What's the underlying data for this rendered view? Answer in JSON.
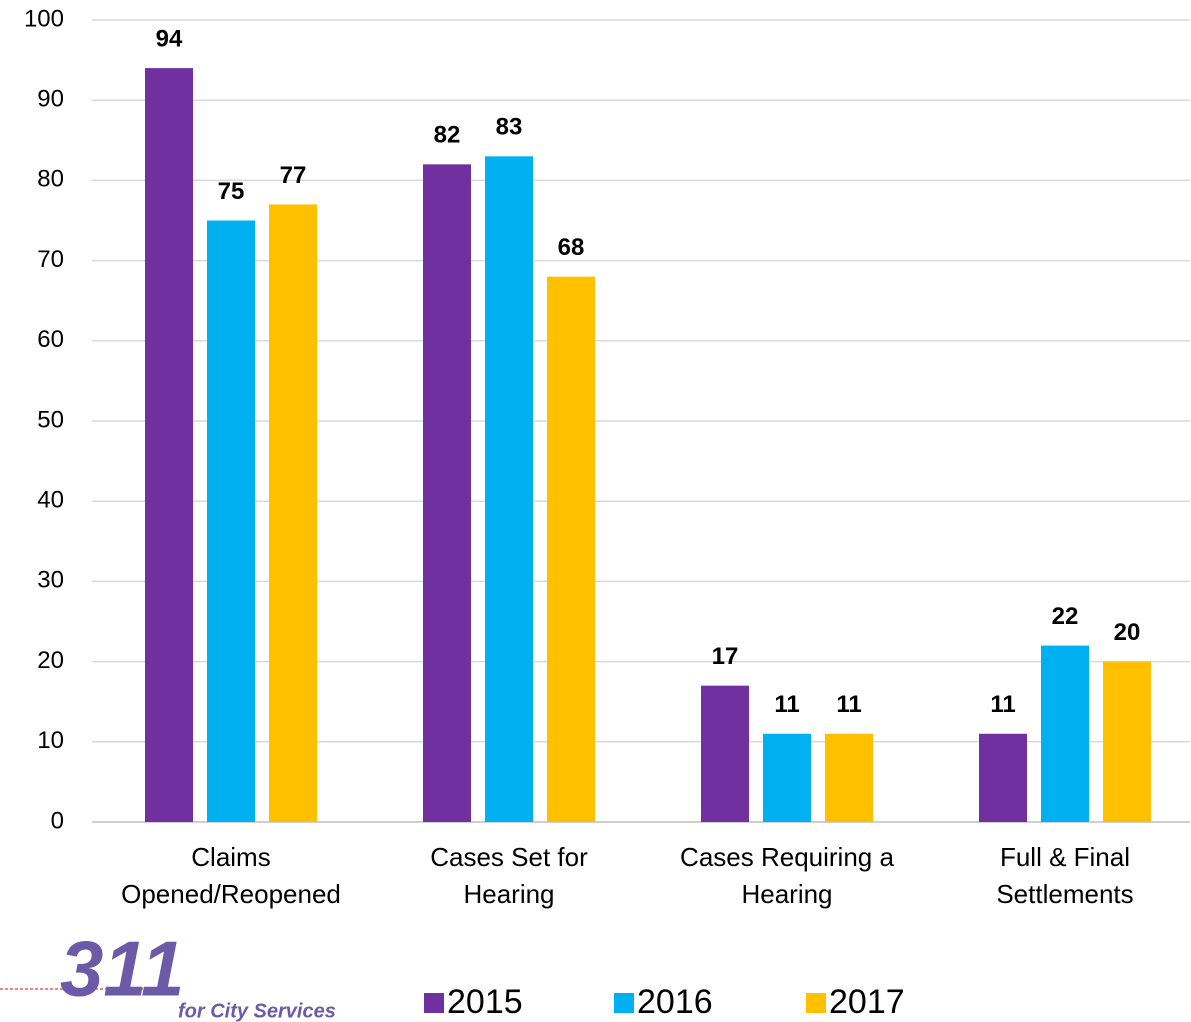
{
  "chart_data": {
    "type": "bar",
    "categories": [
      [
        "Claims",
        "Opened/Reopened"
      ],
      [
        "Cases Set for",
        "Hearing"
      ],
      [
        "Cases Requiring a",
        "Hearing"
      ],
      [
        "Full & Final",
        "Settlements"
      ]
    ],
    "series": [
      {
        "name": "2015",
        "color": "#7030a0",
        "values": [
          94,
          82,
          17,
          11
        ]
      },
      {
        "name": "2016",
        "color": "#00b0f0",
        "values": [
          75,
          83,
          11,
          22
        ]
      },
      {
        "name": "2017",
        "color": "#ffc000",
        "values": [
          77,
          68,
          11,
          20
        ]
      }
    ],
    "ylim": [
      0,
      100
    ],
    "yticks": [
      0,
      10,
      20,
      30,
      40,
      50,
      60,
      70,
      80,
      90,
      100
    ],
    "grid": true,
    "legend": "bottom",
    "logo_text": "311",
    "logo_subtitle": "for City Services"
  }
}
